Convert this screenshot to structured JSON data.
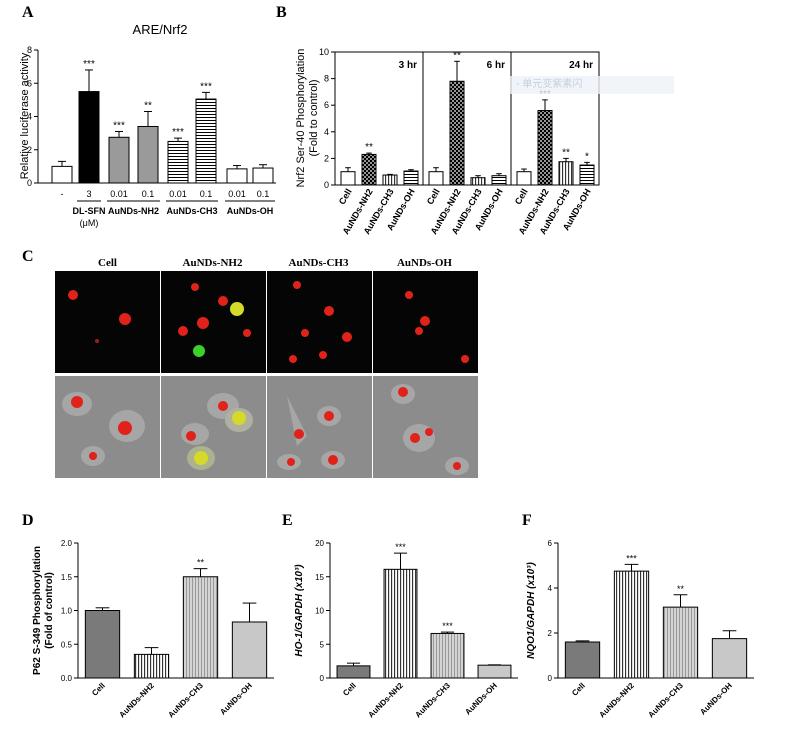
{
  "panel_labels": {
    "a": "A",
    "b": "B",
    "c": "C",
    "d": "D",
    "e": "E",
    "f": "F"
  },
  "colors": {
    "black": "#000000",
    "dark_gray": "#777777",
    "gray": "#999999",
    "light_gray": "#c8c8c8",
    "white": "#ffffff",
    "red_cell": "#e0221b",
    "yellow_cell": "#d4d92a",
    "green_cell": "#3ad12a"
  },
  "panel_c": {
    "columns": [
      "Cell",
      "AuNDs-NH2",
      "AuNDs-CH3",
      "AuNDs-OH"
    ],
    "rows": [
      "fluorescence",
      "merged"
    ]
  },
  "watermark": "◦ 单元变紫素闪",
  "chart_data": [
    {
      "id": "A",
      "type": "bar",
      "title": "ARE/Nrf2",
      "ylabel": "Relative luciferase activity",
      "ylim": [
        0,
        8
      ],
      "yticks": [
        "0",
        "2",
        "4",
        "6",
        "8"
      ],
      "tick_labels": [
        "-",
        "3",
        "0.01",
        "0.1",
        "0.01",
        "0.1",
        "0.01",
        "0.1"
      ],
      "values": [
        1.0,
        5.5,
        2.75,
        3.4,
        2.5,
        5.05,
        0.85,
        0.9
      ],
      "errors": [
        0.3,
        1.3,
        0.35,
        0.9,
        0.2,
        0.4,
        0.2,
        0.2
      ],
      "fills": [
        "white",
        "black",
        "gray",
        "gray",
        "hlines",
        "hlines",
        "white",
        "white"
      ],
      "significance": [
        "",
        "***",
        "***",
        "**",
        "***",
        "***",
        "",
        ""
      ],
      "groups": [
        {
          "label": "DL-SFN",
          "sublabel": "(μM)",
          "from": 1,
          "to": 1
        },
        {
          "label": "AuNDs-NH2",
          "from": 2,
          "to": 3
        },
        {
          "label": "AuNDs-CH3",
          "from": 4,
          "to": 5
        },
        {
          "label": "AuNDs-OH",
          "from": 6,
          "to": 7
        }
      ]
    },
    {
      "id": "B",
      "type": "bar",
      "ylabel": "Nrf2 Ser-40 Phosphorylation",
      "ylabel2": "(Fold to control)",
      "ylim": [
        0,
        10
      ],
      "yticks": [
        "0",
        "2",
        "4",
        "6",
        "8",
        "10"
      ],
      "categories": [
        "Cell",
        "AuNDs-NH2",
        "AuNDs-CH3",
        "AuNDs-OH"
      ],
      "fills": [
        "white",
        "dots",
        "vlines",
        "hlines"
      ],
      "subpanels": [
        {
          "title": "3 hr",
          "values": [
            1.0,
            2.3,
            0.75,
            1.05
          ],
          "errors": [
            0.3,
            0.1,
            0.05,
            0.1
          ],
          "significance": [
            "",
            "**",
            "",
            ""
          ]
        },
        {
          "title": "6 hr",
          "values": [
            1.0,
            7.8,
            0.55,
            0.7
          ],
          "errors": [
            0.3,
            1.5,
            0.15,
            0.15
          ],
          "significance": [
            "",
            "**",
            "",
            ""
          ]
        },
        {
          "title": "24 hr",
          "values": [
            1.0,
            5.6,
            1.75,
            1.5
          ],
          "errors": [
            0.2,
            0.8,
            0.25,
            0.2
          ],
          "significance": [
            "",
            "***",
            "**",
            "*"
          ]
        }
      ]
    },
    {
      "id": "D",
      "type": "bar",
      "ylabel": "P62 S-349 Phosphorylation",
      "ylabel2": "(Fold of control)",
      "ylim": [
        0,
        2.0
      ],
      "yticks": [
        "0.0",
        "0.5",
        "1.0",
        "1.5",
        "2.0"
      ],
      "categories": [
        "Cell",
        "AuNDs-NH2",
        "AuNDs-CH3",
        "AuNDs-OH"
      ],
      "values": [
        1.0,
        0.35,
        1.5,
        0.83
      ],
      "errors": [
        0.04,
        0.1,
        0.12,
        0.28
      ],
      "fills": [
        "dark",
        "vlines",
        "vlines_light",
        "light"
      ],
      "significance": [
        "",
        "",
        "**",
        ""
      ]
    },
    {
      "id": "E",
      "type": "bar",
      "ylabel": "HO-1/GAPDH (x10³)",
      "ylim": [
        0,
        20
      ],
      "yticks": [
        "0",
        "5",
        "10",
        "15",
        "20"
      ],
      "categories": [
        "Cell",
        "AuNDs-NH2",
        "AuNDs-CH3",
        "AuNDs-OH"
      ],
      "values": [
        1.8,
        16.1,
        6.6,
        1.9
      ],
      "errors": [
        0.4,
        2.4,
        0.2,
        0.05
      ],
      "fills": [
        "dark",
        "vlines",
        "vlines_light",
        "light"
      ],
      "significance": [
        "",
        "***",
        "***",
        ""
      ]
    },
    {
      "id": "F",
      "type": "bar",
      "ylabel": "NQO1/GAPDH (x10³)",
      "ylim": [
        0,
        6
      ],
      "yticks": [
        "0",
        "2",
        "4",
        "6"
      ],
      "categories": [
        "Cell",
        "AuNDs-NH2",
        "AuNDs-CH3",
        "AuNDs-OH"
      ],
      "values": [
        1.6,
        4.75,
        3.15,
        1.75
      ],
      "errors": [
        0.05,
        0.3,
        0.55,
        0.35
      ],
      "fills": [
        "dark",
        "vlines",
        "vlines_light",
        "light"
      ],
      "significance": [
        "",
        "***",
        "**",
        ""
      ]
    }
  ]
}
